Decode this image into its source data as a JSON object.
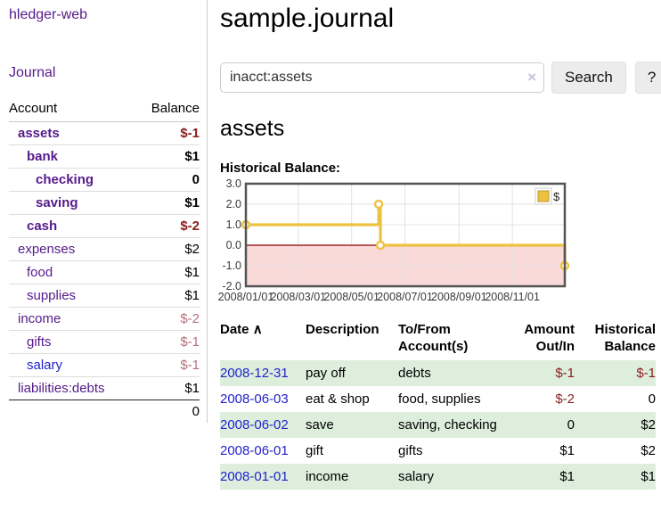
{
  "app": {
    "brand": "hledger-web",
    "nav_journal": "Journal"
  },
  "colors": {
    "purple_link": "#551a8b",
    "blue_link": "#2323cc",
    "negative_strong": "#8b1d1d",
    "negative_faded": "#b4707a",
    "row_green": "#ddeedd",
    "chart_series_yellow": "#edc240",
    "chart_negative_region": "#fad9d9",
    "chart_zero_line": "#8b0000",
    "button_gray": "#ececec"
  },
  "sidebar": {
    "headers": {
      "account": "Account",
      "balance": "Balance"
    },
    "rows": [
      {
        "account": "assets",
        "balance": "$-1",
        "level": 1,
        "bold": true,
        "balance_class": "neg"
      },
      {
        "account": "bank",
        "balance": "$1",
        "level": 2,
        "bold": true,
        "balance_class": ""
      },
      {
        "account": "checking",
        "balance": "0",
        "level": 3,
        "bold": true,
        "balance_class": ""
      },
      {
        "account": "saving",
        "balance": "$1",
        "level": 3,
        "bold": true,
        "balance_class": ""
      },
      {
        "account": "cash",
        "balance": "$-2",
        "level": 2,
        "bold": true,
        "balance_class": "neg"
      },
      {
        "account": "expenses",
        "balance": "$2",
        "level": 1,
        "bold": false,
        "balance_class": ""
      },
      {
        "account": "food",
        "balance": "$1",
        "level": 2,
        "bold": false,
        "balance_class": ""
      },
      {
        "account": "supplies",
        "balance": "$1",
        "level": 2,
        "bold": false,
        "balance_class": ""
      },
      {
        "account": "income",
        "balance": "$-2",
        "level": 1,
        "bold": false,
        "balance_class": "negfade"
      },
      {
        "account": "gifts",
        "balance": "$-1",
        "level": 2,
        "bold": false,
        "balance_class": "negfade"
      },
      {
        "account": "salary",
        "balance": "$-1",
        "level": 2,
        "bold": false,
        "balance_class": "negfade",
        "link_color": "blue"
      },
      {
        "account": "liabilities:debts",
        "balance": "$1",
        "level": 1,
        "bold": false,
        "balance_class": ""
      }
    ],
    "total": "0"
  },
  "main": {
    "title": "sample.journal",
    "search": {
      "value": "inacct:assets",
      "clear_glyph": "×",
      "button_label": "Search",
      "help_label": "?"
    },
    "section_title": "assets",
    "chart_label": "Historical Balance:"
  },
  "chart_data": {
    "type": "line",
    "step": true,
    "title": "Historical Balance",
    "series": [
      {
        "name": "$",
        "color": "#edc240",
        "x_dates": [
          "2008-01-01",
          "2008-06-01",
          "2008-06-03",
          "2008-12-31"
        ],
        "x_days": [
          0,
          152,
          154,
          365
        ],
        "values": [
          1,
          2,
          0,
          -1
        ]
      }
    ],
    "xlim": [
      0,
      365
    ],
    "ylim": [
      -2,
      3
    ],
    "xticks": [
      {
        "day": 0,
        "label": "2008/01/01"
      },
      {
        "day": 60,
        "label": "2008/03/01"
      },
      {
        "day": 121,
        "label": "2008/05/01"
      },
      {
        "day": 182,
        "label": "2008/07/01"
      },
      {
        "day": 244,
        "label": "2008/09/01"
      },
      {
        "day": 305,
        "label": "2008/11/01"
      }
    ],
    "ytick_labels": [
      "3.0",
      "2.0",
      "1.0",
      "0.0",
      "-1.0",
      "-2.0"
    ],
    "yticks": [
      3,
      2,
      1,
      0,
      -1,
      -2
    ],
    "grid": true,
    "legend_position": "top-right",
    "negative_region_color": "#fad9d9",
    "zero_line_color": "#8b0000"
  },
  "register": {
    "headers": {
      "date": "Date",
      "sort_arrow": "∧",
      "description": "Description",
      "accounts": "To/From Account(s)",
      "amount": "Amount Out/In",
      "balance": "Historical Balance"
    },
    "rows": [
      {
        "date": "2008-12-31",
        "description": "pay off",
        "accounts": "debts",
        "amount": "$-1",
        "amount_neg": true,
        "balance": "$-1",
        "balance_neg": true
      },
      {
        "date": "2008-06-03",
        "description": "eat & shop",
        "accounts": "food, supplies",
        "amount": "$-2",
        "amount_neg": true,
        "balance": "0",
        "balance_neg": false
      },
      {
        "date": "2008-06-02",
        "description": "save",
        "accounts": "saving, checking",
        "amount": "0",
        "amount_neg": false,
        "balance": "$2",
        "balance_neg": false
      },
      {
        "date": "2008-06-01",
        "description": "gift",
        "accounts": "gifts",
        "amount": "$1",
        "amount_neg": false,
        "balance": "$2",
        "balance_neg": false
      },
      {
        "date": "2008-01-01",
        "description": "income",
        "accounts": "salary",
        "amount": "$1",
        "amount_neg": false,
        "balance": "$1",
        "balance_neg": false
      }
    ]
  }
}
